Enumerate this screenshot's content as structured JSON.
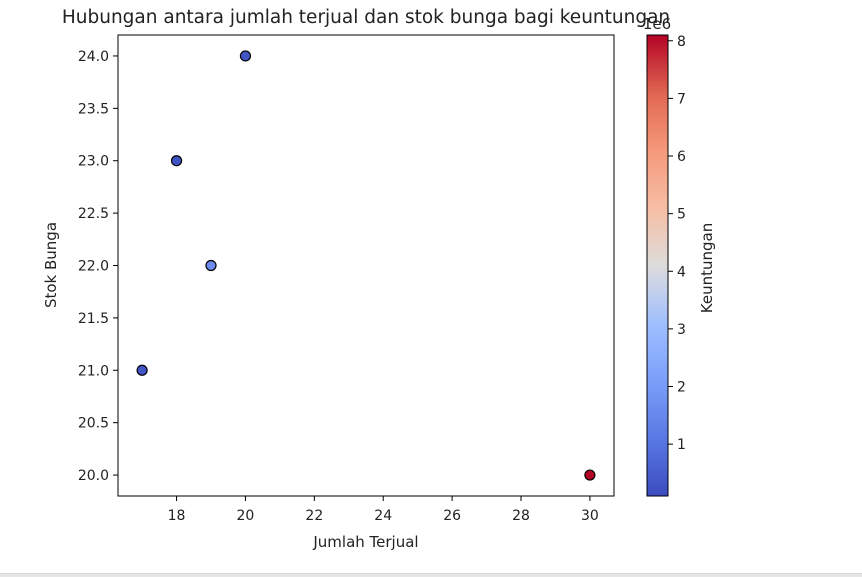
{
  "chart_data": {
    "type": "scatter",
    "title": "Hubungan antara jumlah terjual dan stok bunga bagi keuntungan",
    "xlabel": "Jumlah Terjual",
    "ylabel": "Stok Bunga",
    "xlim": [
      16.3,
      30.7
    ],
    "ylim": [
      19.8,
      24.2
    ],
    "xticks": [
      18,
      20,
      22,
      24,
      26,
      28,
      30
    ],
    "yticks": [
      20.0,
      20.5,
      21.0,
      21.5,
      22.0,
      22.5,
      23.0,
      23.5,
      24.0
    ],
    "grid": false,
    "points": [
      {
        "x": 20,
        "y": 24.0,
        "c": 300000
      },
      {
        "x": 18,
        "y": 23.0,
        "c": 250000
      },
      {
        "x": 19,
        "y": 22.0,
        "c": 1600000
      },
      {
        "x": 17,
        "y": 21.0,
        "c": 300000
      },
      {
        "x": 30,
        "y": 20.0,
        "c": 8100000
      }
    ],
    "colorbar": {
      "label": "Keuntungan",
      "colormap": "coolwarm",
      "offset_text": "1e6",
      "range": [
        100000,
        8100000
      ],
      "ticks": [
        1,
        2,
        3,
        4,
        5,
        6,
        7,
        8
      ],
      "tick_scale": 1000000
    },
    "marker_edge_color": "#000000"
  }
}
